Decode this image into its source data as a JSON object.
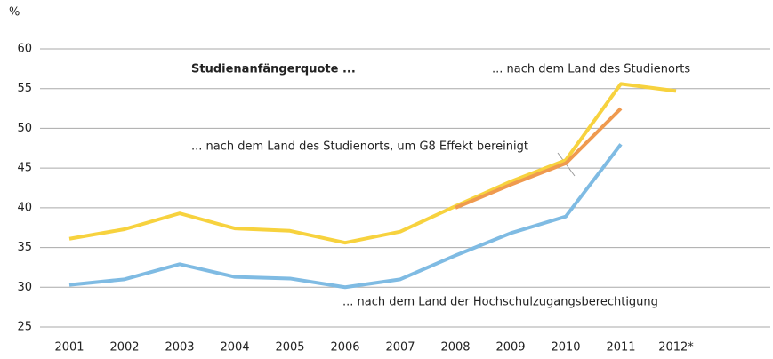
{
  "chart_data": {
    "type": "line",
    "title": "Studienanfängerquote ...",
    "ylabel": "%",
    "categories": [
      "2001",
      "2002",
      "2003",
      "2004",
      "2005",
      "2006",
      "2007",
      "2008",
      "2009",
      "2010",
      "2011",
      "2012*"
    ],
    "series": [
      {
        "name": "... nach dem Land des Studienorts",
        "color": "#f7d23e",
        "values": [
          36.1,
          37.3,
          39.3,
          37.4,
          37.1,
          35.6,
          37.0,
          40.2,
          43.3,
          46.0,
          55.6,
          54.7
        ]
      },
      {
        "name": "... nach dem Land der Hochschulzugangsberechtigung",
        "color": "#7fbbe3",
        "values": [
          30.3,
          31.0,
          32.9,
          31.3,
          31.1,
          30.0,
          31.0,
          34.0,
          36.8,
          38.9,
          48.0,
          null
        ]
      },
      {
        "name": "... nach dem Land des Studienorts, um G8 Effekt bereinigt",
        "color": "#ef9a4f",
        "values": [
          null,
          null,
          null,
          null,
          null,
          null,
          null,
          40.0,
          42.9,
          45.6,
          52.5,
          null
        ]
      }
    ],
    "ylim": [
      25,
      60
    ],
    "yticks": [
      25,
      30,
      35,
      40,
      45,
      50,
      55,
      60
    ],
    "grid": true
  }
}
